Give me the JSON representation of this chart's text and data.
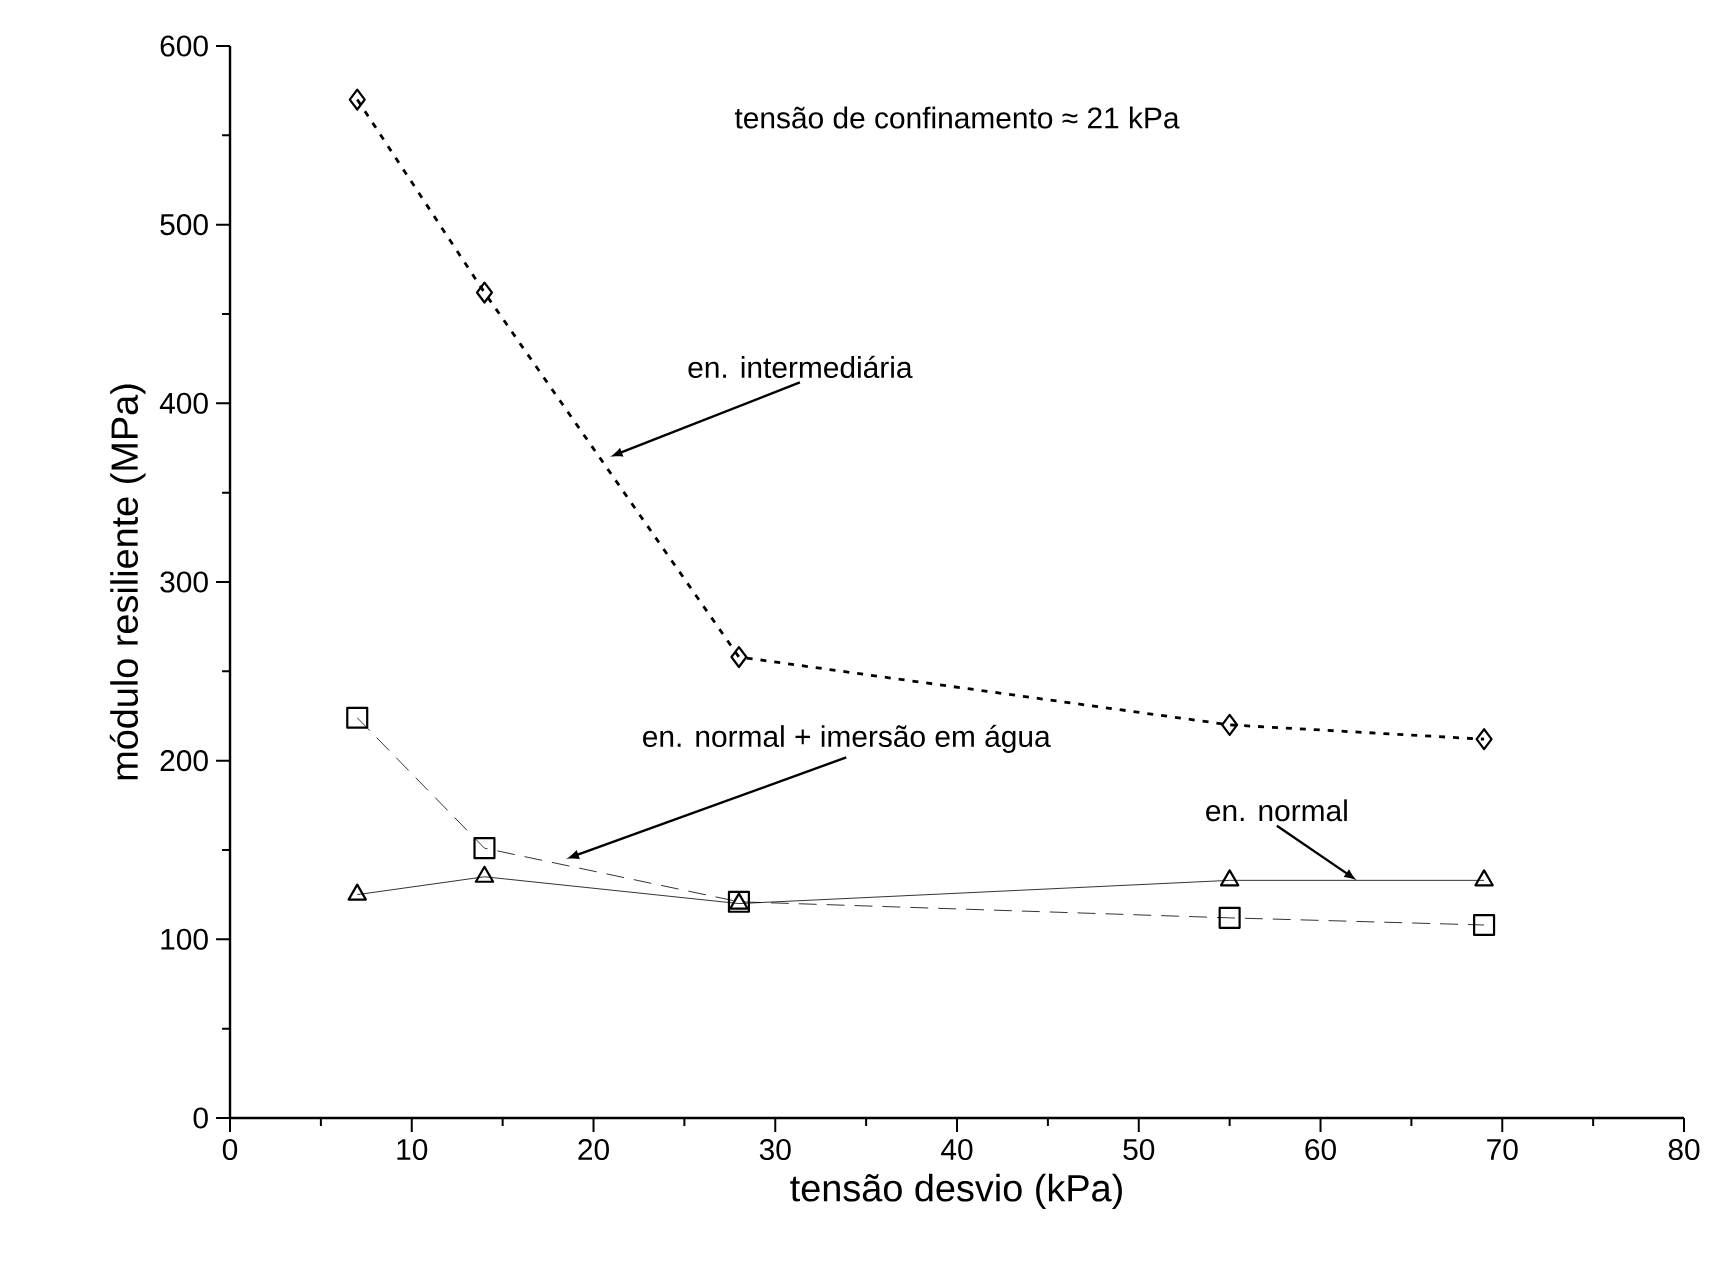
{
  "chart_data": {
    "type": "line",
    "xlabel": "tensão desvio (kPa)",
    "ylabel": "módulo resiliente (MPa)",
    "x": [
      7,
      14,
      28,
      55,
      69
    ],
    "series": [
      {
        "color": "#000000",
        "values": [
          570,
          462,
          258,
          220,
          212
        ],
        "marker": "diamond",
        "line_style": "dotted"
      },
      {
        "color": "#000000",
        "values": [
          224,
          151,
          121,
          112,
          108
        ],
        "marker": "square",
        "line_style": "dashed"
      },
      {
        "color": "#000000",
        "values": [
          125,
          135,
          120,
          133,
          133
        ],
        "marker": "triangle",
        "line_style": "solid"
      }
    ],
    "xlim": [
      0,
      80
    ],
    "ylim": [
      0,
      600
    ],
    "xticks": [
      0,
      10,
      20,
      30,
      40,
      50,
      60,
      70,
      80
    ],
    "yticks": [
      0,
      100,
      200,
      300,
      400,
      500,
      600
    ],
    "annotations": [
      "tensão de confinamento ≈ 21 kPa",
      {
        "text": "en. intermediária",
        "x": 20.9,
        "y": 370
      },
      {
        "text": "en. normal + imersão em água",
        "x": 18.5,
        "y": 145
      },
      {
        "text": "en. normal",
        "x": 62,
        "y": 133
      }
    ]
  }
}
